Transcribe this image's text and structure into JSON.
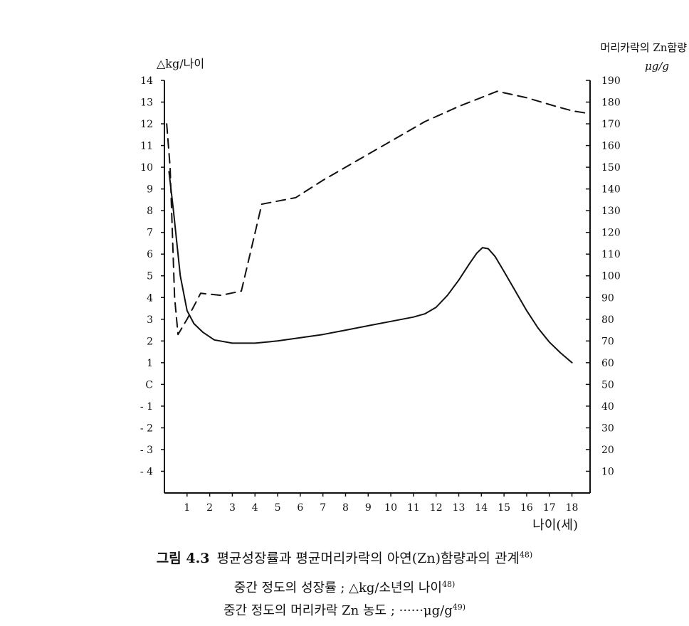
{
  "chart_data": {
    "type": "line",
    "xlabel": "나이(세)",
    "ylabel_left": "△kg/나이",
    "ylabel_right_line1": "머리카락의 Zn함량",
    "ylabel_right_line2": "μg/g",
    "x_ticks": [
      1,
      2,
      3,
      4,
      5,
      6,
      7,
      8,
      9,
      10,
      11,
      12,
      13,
      14,
      15,
      16,
      17,
      18
    ],
    "x_tick_labels": [
      "1",
      "2",
      "3",
      "4",
      "5",
      "6",
      "7",
      "8",
      "9",
      "10",
      "11",
      "12",
      "13",
      "14",
      "15",
      "16",
      "17",
      "18"
    ],
    "xlim": [
      0,
      18.8
    ],
    "ylim_left": [
      -5,
      14
    ],
    "y_left_ticks": [
      14,
      13,
      12,
      11,
      10,
      9,
      8,
      7,
      6,
      5,
      4,
      3,
      2,
      1,
      0,
      -1,
      -2,
      -3,
      -4
    ],
    "y_left_tick_labels": [
      "14",
      "13",
      "12",
      "11",
      "10",
      "9",
      "8",
      "7",
      "6",
      "5",
      "4",
      "3",
      "2",
      "1",
      "C",
      "- 1",
      "- 2",
      "- 3",
      "- 4"
    ],
    "ylim_right": [
      0,
      190
    ],
    "y_right_ticks": [
      190,
      180,
      170,
      160,
      150,
      140,
      130,
      120,
      110,
      100,
      90,
      80,
      70,
      60,
      50,
      40,
      30,
      20,
      10
    ],
    "y_right_tick_labels": [
      "190",
      "180",
      "170",
      "160",
      "150",
      "140",
      "130",
      "120",
      "110",
      "100",
      "90",
      "80",
      "70",
      "60",
      "50",
      "40",
      "30",
      "20",
      "10"
    ],
    "series": [
      {
        "axis": "left",
        "style": "solid",
        "x": [
          0.2,
          0.4,
          0.7,
          1.0,
          1.3,
          1.7,
          2.2,
          3.0,
          4.0,
          5.0,
          6.0,
          7.0,
          8.0,
          9.0,
          10.0,
          11.0,
          11.5,
          12.0,
          12.5,
          13.0,
          13.5,
          13.8,
          14.05,
          14.3,
          14.6,
          15.0,
          15.5,
          16.0,
          16.5,
          17.0,
          17.5,
          18.0
        ],
        "y": [
          9.8,
          8.0,
          5.0,
          3.4,
          2.8,
          2.4,
          2.05,
          1.9,
          1.9,
          2.0,
          2.15,
          2.3,
          2.5,
          2.7,
          2.9,
          3.1,
          3.25,
          3.55,
          4.1,
          4.8,
          5.6,
          6.05,
          6.3,
          6.25,
          5.9,
          5.2,
          4.3,
          3.4,
          2.6,
          1.95,
          1.45,
          1.0
        ]
      },
      {
        "axis": "right",
        "style": "dashed",
        "x": [
          0.1,
          0.25,
          0.45,
          0.6,
          1.0,
          1.6,
          2.5,
          3.4,
          4.3,
          5.8,
          7.0,
          8.5,
          10.0,
          11.5,
          13.0,
          14.7,
          16.0,
          17.3,
          18.0,
          18.6
        ],
        "y": [
          170,
          150,
          90,
          73,
          80,
          92,
          91,
          93,
          133,
          136,
          144,
          153,
          162,
          171,
          178,
          185,
          182,
          178,
          176,
          175
        ]
      }
    ]
  },
  "caption": {
    "figure_number": "그림 4.3",
    "title": "평균성장률과 평균머리카락의 아연(Zn)함량과의 관계",
    "title_ref": "48)",
    "line2": "중간 정도의 성장률 ; △kg/소년의 나이",
    "line2_ref": "48)",
    "line3": "중간 정도의 머리카락 Zn 농도 ; ······μg/g",
    "line3_ref": "49)"
  }
}
